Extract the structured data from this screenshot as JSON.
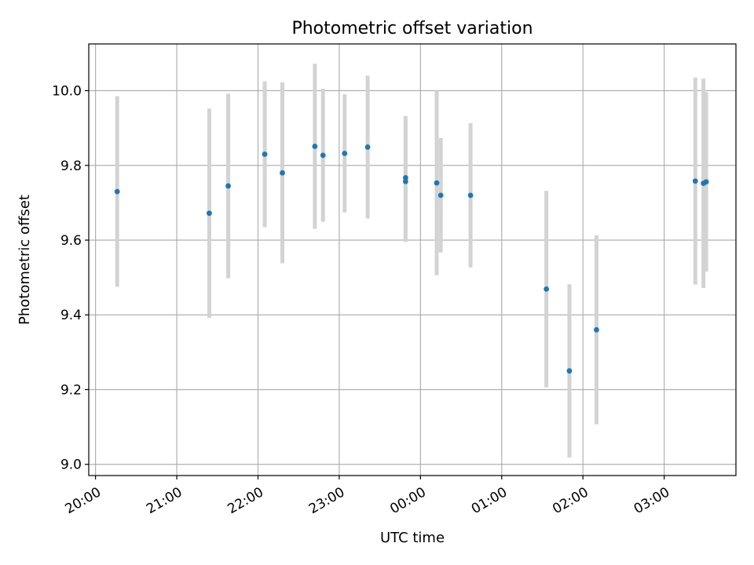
{
  "chart_data": {
    "type": "scatter",
    "title": "Photometric offset variation",
    "xlabel": "UTC time",
    "ylabel": "Photometric offset",
    "x_tick_labels": [
      "20:00",
      "21:00",
      "22:00",
      "23:00",
      "00:00",
      "01:00",
      "02:00",
      "03:00"
    ],
    "y_tick_labels": [
      "9.0",
      "9.2",
      "9.4",
      "9.6",
      "9.8",
      "10.0"
    ],
    "y_ticks": [
      9.0,
      9.2,
      9.4,
      9.6,
      9.8,
      10.0
    ],
    "xlim": [
      "19:55",
      "27:53"
    ],
    "ylim": [
      8.97,
      10.125
    ],
    "grid": true,
    "marker_color": "#1f77b4",
    "errorbar_color": "#d3d3d3",
    "points": [
      {
        "x": "20:16",
        "y": 9.73,
        "yerr": 0.255
      },
      {
        "x": "21:24",
        "y": 9.672,
        "yerr": 0.28
      },
      {
        "x": "21:38",
        "y": 9.745,
        "yerr": 0.247
      },
      {
        "x": "22:05",
        "y": 9.83,
        "yerr": 0.195
      },
      {
        "x": "22:18",
        "y": 9.78,
        "yerr": 0.242
      },
      {
        "x": "22:42",
        "y": 9.851,
        "yerr": 0.221
      },
      {
        "x": "22:48",
        "y": 9.827,
        "yerr": 0.178
      },
      {
        "x": "23:04",
        "y": 9.832,
        "yerr": 0.158
      },
      {
        "x": "23:21",
        "y": 9.849,
        "yerr": 0.191
      },
      {
        "x": "23:49",
        "y": 9.767,
        "yerr": 0.165
      },
      {
        "x": "23:49",
        "y": 9.757,
        "yerr": 0.162
      },
      {
        "x": "24:12",
        "y": 9.753,
        "yerr": 0.247
      },
      {
        "x": "24:15",
        "y": 9.72,
        "yerr": 0.153
      },
      {
        "x": "24:37",
        "y": 9.72,
        "yerr": 0.193
      },
      {
        "x": "25:33",
        "y": 9.469,
        "yerr": 0.263
      },
      {
        "x": "25:50",
        "y": 9.25,
        "yerr": 0.232
      },
      {
        "x": "26:10",
        "y": 9.36,
        "yerr": 0.253
      },
      {
        "x": "27:23",
        "y": 9.758,
        "yerr": 0.277
      },
      {
        "x": "27:29",
        "y": 9.752,
        "yerr": 0.28
      },
      {
        "x": "27:31",
        "y": 9.756,
        "yerr": 0.24
      }
    ]
  }
}
